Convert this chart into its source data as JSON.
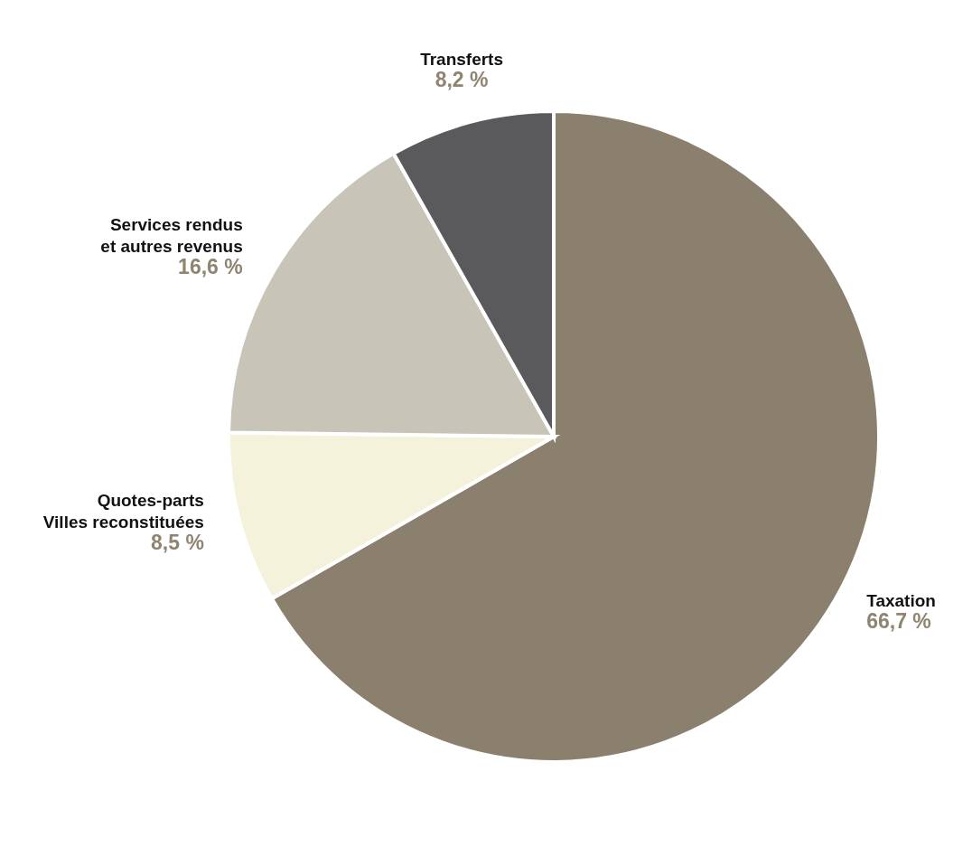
{
  "chart_data": {
    "type": "pie",
    "categories": [
      "Taxation",
      "Quotes-parts\nVilles reconstituées",
      "Services rendus\net autres revenus",
      "Transferts"
    ],
    "values": [
      66.7,
      8.5,
      16.6,
      8.2
    ],
    "value_labels": [
      "66,7 %",
      "8,5 %",
      "16,6 %",
      "8,2 %"
    ],
    "colors": [
      "#8b7f6e",
      "#f5f2dc",
      "#c8c5b8",
      "#5a5a5c"
    ],
    "legend": false
  }
}
